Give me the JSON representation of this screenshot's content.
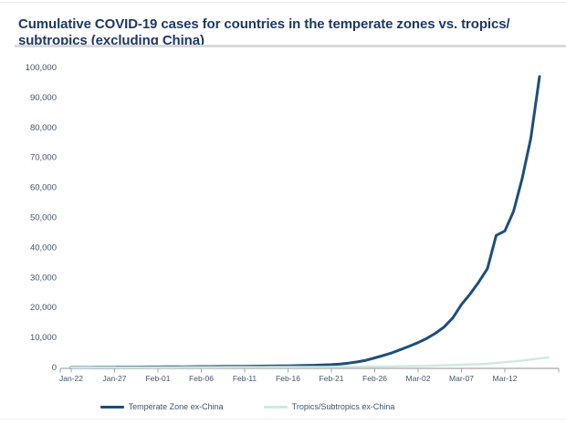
{
  "page": {
    "title": "Cumulative COVID-19 cases for countries in the temperate zones vs. tropics/\nsubtropics (excluding China)"
  },
  "colors": {
    "title": "#1f3864",
    "title_rule": "#d9d9d9",
    "axis": "#a6a6a6",
    "tick_label": "#44546a",
    "temperate_line": "#1f4e79",
    "tropics_line": "#cfe8e0"
  },
  "legend": {
    "items": [
      {
        "label": "Temperate Zone ex-China",
        "color": "#1f4e79"
      },
      {
        "label": "Tropics/Subtropics ex-China",
        "color": "#cfe8e0"
      }
    ]
  },
  "chart_data": {
    "type": "line",
    "title": "Cumulative COVID-19 cases for countries in the temperate zones vs. tropics/subtropics (excluding China)",
    "xlabel": "",
    "ylabel": "",
    "ylim": [
      0,
      100000
    ],
    "grid": false,
    "legend_position": "bottom",
    "y_tick_values": [
      0,
      10000,
      20000,
      30000,
      40000,
      50000,
      60000,
      70000,
      80000,
      90000,
      100000
    ],
    "y_tick_labels": [
      "0",
      "10,000",
      "20,000",
      "30,000",
      "40,000",
      "50,000",
      "60,000",
      "70,000",
      "80,000",
      "90,000",
      "100,000"
    ],
    "x_tick_labels": [
      "Jan-22",
      "Jan-27",
      "Feb-01",
      "Feb-06",
      "Feb-11",
      "Feb-16",
      "Feb-21",
      "Feb-26",
      "Mar-02",
      "Mar-07",
      "Mar-12"
    ],
    "x_tick_day_offsets": [
      0,
      5,
      10,
      15,
      20,
      25,
      30,
      35,
      40,
      45,
      50
    ],
    "dates": [
      "Jan-22",
      "Jan-23",
      "Jan-24",
      "Jan-25",
      "Jan-26",
      "Jan-27",
      "Jan-28",
      "Jan-29",
      "Jan-30",
      "Jan-31",
      "Feb-01",
      "Feb-02",
      "Feb-03",
      "Feb-04",
      "Feb-05",
      "Feb-06",
      "Feb-07",
      "Feb-08",
      "Feb-09",
      "Feb-10",
      "Feb-11",
      "Feb-12",
      "Feb-13",
      "Feb-14",
      "Feb-15",
      "Feb-16",
      "Feb-17",
      "Feb-18",
      "Feb-19",
      "Feb-20",
      "Feb-21",
      "Feb-22",
      "Feb-23",
      "Feb-24",
      "Feb-25",
      "Feb-26",
      "Feb-27",
      "Feb-28",
      "Feb-29",
      "Mar-01",
      "Mar-02",
      "Mar-03",
      "Mar-04",
      "Mar-05",
      "Mar-06",
      "Mar-07",
      "Mar-08",
      "Mar-09",
      "Mar-10",
      "Mar-11",
      "Mar-12",
      "Mar-13",
      "Mar-14",
      "Mar-15",
      "Mar-16",
      "Mar-17"
    ],
    "series": [
      {
        "name": "Temperate Zone ex-China",
        "color": "#1f4e79",
        "values": [
          25,
          30,
          40,
          55,
          70,
          90,
          110,
          130,
          150,
          170,
          190,
          210,
          230,
          250,
          270,
          290,
          310,
          330,
          350,
          380,
          410,
          440,
          470,
          500,
          530,
          560,
          610,
          660,
          730,
          820,
          950,
          1150,
          1450,
          1850,
          2400,
          3200,
          4000,
          4900,
          6000,
          7100,
          8300,
          9700,
          11400,
          13500,
          16500,
          21000,
          24500,
          28500,
          33000,
          44000,
          45500,
          52000,
          63000,
          76500,
          97000,
          null
        ]
      },
      {
        "name": "Tropics/Subtropics ex-China",
        "color": "#cfe8e0",
        "values": [
          5,
          8,
          12,
          16,
          22,
          30,
          36,
          42,
          48,
          54,
          60,
          66,
          72,
          78,
          84,
          90,
          96,
          102,
          108,
          114,
          120,
          126,
          132,
          138,
          144,
          150,
          158,
          168,
          178,
          188,
          200,
          215,
          232,
          252,
          275,
          300,
          330,
          365,
          405,
          450,
          500,
          560,
          630,
          710,
          800,
          900,
          1000,
          1100,
          1250,
          1500,
          1800,
          2000,
          2300,
          2650,
          3000,
          3300
        ]
      }
    ]
  }
}
